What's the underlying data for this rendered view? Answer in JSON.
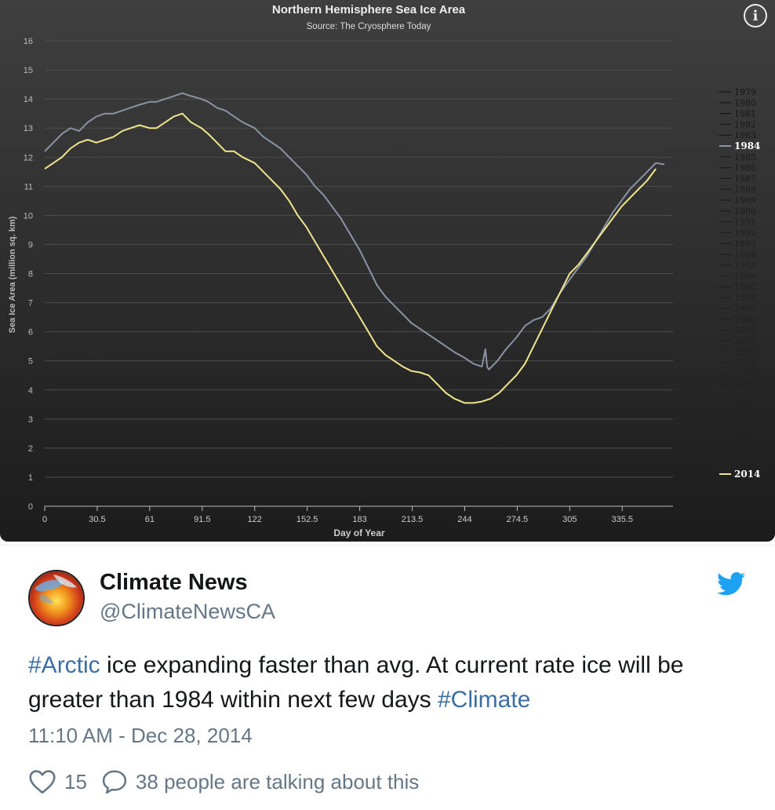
{
  "chart_data": {
    "type": "line",
    "title": "Northern Hemisphere Sea Ice Area",
    "subtitle": "Source: The Cryosphere Today",
    "xlabel": "Day of Year",
    "ylabel": "Sea Ice Area (million sq. km)",
    "xlim": [
      0,
      365
    ],
    "ylim": [
      0,
      16
    ],
    "x_ticks": [
      "0",
      "30.5",
      "61",
      "91.5",
      "122",
      "152.5",
      "183",
      "213.5",
      "244",
      "274.5",
      "305",
      "335.5"
    ],
    "y_ticks": [
      "0",
      "1",
      "2",
      "3",
      "4",
      "5",
      "6",
      "7",
      "8",
      "9",
      "10",
      "11",
      "12",
      "13",
      "14",
      "15",
      "16"
    ],
    "grid": true,
    "legend_position": "right",
    "legend": [
      "1979",
      "1980",
      "1981",
      "1982",
      "1983",
      "1984",
      "1985",
      "1986",
      "1987",
      "1988",
      "1989",
      "1990",
      "1991",
      "1992",
      "1993",
      "1994",
      "1995",
      "1996",
      "1997",
      "1998",
      "1999",
      "2000",
      "2001",
      "2002",
      "2003",
      "2004",
      "2005",
      "2006",
      "2007",
      "2008",
      "2009",
      "2010",
      "2011",
      "2012",
      "2013",
      "2014"
    ],
    "series": [
      {
        "name": "1984",
        "color": "#8a93a6",
        "x": [
          0,
          5,
          10,
          15,
          20,
          25,
          30,
          35,
          40,
          45,
          50,
          55,
          61,
          65,
          70,
          75,
          80,
          85,
          91,
          95,
          100,
          105,
          110,
          115,
          122,
          127,
          132,
          137,
          142,
          147,
          152,
          157,
          162,
          167,
          172,
          177,
          183,
          188,
          193,
          198,
          203,
          208,
          213,
          218,
          223,
          228,
          233,
          238,
          244,
          249,
          254,
          256,
          257,
          258,
          263,
          268,
          274,
          279,
          284,
          289,
          294,
          299,
          305,
          310,
          315,
          320,
          325,
          330,
          335,
          340,
          345,
          350,
          355,
          360
        ],
        "y": [
          12.2,
          12.5,
          12.8,
          13.0,
          12.9,
          13.2,
          13.4,
          13.5,
          13.5,
          13.6,
          13.7,
          13.8,
          13.9,
          13.9,
          14.0,
          14.1,
          14.2,
          14.1,
          14.0,
          13.9,
          13.7,
          13.6,
          13.4,
          13.2,
          13.0,
          12.7,
          12.5,
          12.3,
          12.0,
          11.7,
          11.4,
          11.0,
          10.7,
          10.3,
          9.9,
          9.4,
          8.8,
          8.2,
          7.6,
          7.2,
          6.9,
          6.6,
          6.3,
          6.1,
          5.9,
          5.7,
          5.5,
          5.3,
          5.1,
          4.9,
          4.8,
          5.4,
          4.8,
          4.7,
          5.0,
          5.4,
          5.8,
          6.2,
          6.4,
          6.5,
          6.8,
          7.3,
          7.8,
          8.2,
          8.6,
          9.1,
          9.6,
          10.1,
          10.5,
          10.9,
          11.2,
          11.5,
          11.8,
          11.75
        ]
      },
      {
        "name": "2014",
        "color": "#f0e68c",
        "x": [
          0,
          5,
          10,
          15,
          20,
          25,
          30,
          35,
          40,
          45,
          50,
          55,
          61,
          65,
          70,
          75,
          80,
          85,
          91,
          95,
          100,
          105,
          110,
          115,
          122,
          127,
          132,
          137,
          142,
          147,
          152,
          157,
          162,
          167,
          172,
          177,
          183,
          188,
          193,
          198,
          203,
          208,
          213,
          218,
          223,
          228,
          233,
          238,
          244,
          249,
          254,
          259,
          264,
          269,
          274,
          279,
          284,
          289,
          294,
          299,
          305,
          310,
          315,
          320,
          325,
          330,
          335,
          340,
          345,
          350,
          355
        ],
        "y": [
          11.6,
          11.8,
          12.0,
          12.3,
          12.5,
          12.6,
          12.5,
          12.6,
          12.7,
          12.9,
          13.0,
          13.1,
          13.0,
          13.0,
          13.2,
          13.4,
          13.5,
          13.2,
          13.0,
          12.8,
          12.5,
          12.2,
          12.2,
          12.0,
          11.8,
          11.5,
          11.2,
          10.9,
          10.5,
          10.0,
          9.6,
          9.1,
          8.6,
          8.1,
          7.6,
          7.1,
          6.5,
          6.0,
          5.5,
          5.2,
          5.0,
          4.8,
          4.65,
          4.6,
          4.5,
          4.2,
          3.9,
          3.7,
          3.55,
          3.55,
          3.6,
          3.7,
          3.9,
          4.2,
          4.5,
          4.9,
          5.5,
          6.1,
          6.7,
          7.3,
          8.0,
          8.3,
          8.7,
          9.1,
          9.5,
          9.9,
          10.3,
          10.6,
          10.9,
          11.2,
          11.6
        ]
      }
    ]
  },
  "tweet": {
    "name": "Climate News",
    "handle": "@ClimateNewsCA",
    "hashtag1": "#Arctic",
    "text_part1": " ice expanding faster than avg. At current rate ice will be greater than 1984 within next few days ",
    "hashtag2": "#Climate",
    "timestamp": "11:10 AM - Dec 28, 2014",
    "like_count": "15",
    "talking": "38 people are talking about this"
  },
  "colors": {
    "chart_bg_top": "#3e3e3e",
    "chart_bg_bottom": "#1e1e1e",
    "twitter_blue": "#1da1f2",
    "hashtag": "#3b6ea5"
  },
  "icons": {
    "info": "info-icon",
    "bird": "twitter-bird-icon",
    "like": "heart-icon",
    "reply": "speech-bubble-icon"
  }
}
